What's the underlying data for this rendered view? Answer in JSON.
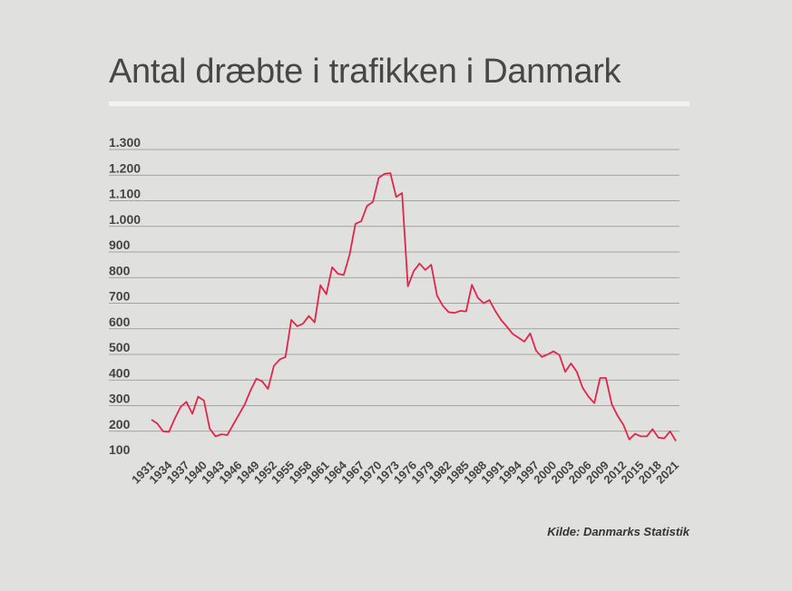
{
  "title": "Antal dræbte i trafikken i Danmark",
  "source": "Kilde: Danmarks Statistik",
  "line_color": "#e0264a",
  "chart_data": {
    "type": "line",
    "title": "Antal dræbte i trafikken i Danmark",
    "xlabel": "",
    "ylabel": "",
    "grid": true,
    "ylim": [
      100,
      1300
    ],
    "y_ticks": [
      "100",
      "200",
      "300",
      "400",
      "500",
      "600",
      "700",
      "800",
      "900",
      "1.000",
      "1.100",
      "1.200",
      "1.300"
    ],
    "y_tick_values": [
      100,
      200,
      300,
      400,
      500,
      600,
      700,
      800,
      900,
      1000,
      1100,
      1200,
      1300
    ],
    "x_ticks": [
      "1931",
      "1934",
      "1937",
      "1940",
      "1943",
      "1946",
      "1949",
      "1952",
      "1955",
      "1958",
      "1961",
      "1964",
      "1967",
      "1970",
      "1973",
      "1976",
      "1979",
      "1982",
      "1985",
      "1988",
      "1991",
      "1994",
      "1997",
      "2000",
      "2003",
      "2006",
      "2009",
      "2012",
      "2015",
      "2018",
      "2021"
    ],
    "x": [
      1931,
      1932,
      1933,
      1934,
      1935,
      1936,
      1937,
      1938,
      1939,
      1940,
      1941,
      1942,
      1943,
      1944,
      1945,
      1946,
      1947,
      1948,
      1949,
      1950,
      1951,
      1952,
      1953,
      1954,
      1955,
      1956,
      1957,
      1958,
      1959,
      1960,
      1961,
      1962,
      1963,
      1964,
      1965,
      1966,
      1967,
      1968,
      1969,
      1970,
      1971,
      1972,
      1973,
      1974,
      1975,
      1976,
      1977,
      1978,
      1979,
      1980,
      1981,
      1982,
      1983,
      1984,
      1985,
      1986,
      1987,
      1988,
      1989,
      1990,
      1991,
      1992,
      1993,
      1994,
      1995,
      1996,
      1997,
      1998,
      1999,
      2000,
      2001,
      2002,
      2003,
      2004,
      2005,
      2006,
      2007,
      2008,
      2009,
      2010,
      2011,
      2012,
      2013,
      2014,
      2015,
      2016,
      2017,
      2018,
      2019,
      2020,
      2021
    ],
    "y": [
      245,
      230,
      200,
      198,
      250,
      295,
      315,
      268,
      335,
      320,
      210,
      180,
      188,
      185,
      225,
      265,
      305,
      360,
      405,
      395,
      365,
      455,
      480,
      490,
      635,
      610,
      620,
      650,
      625,
      770,
      735,
      840,
      815,
      810,
      890,
      1010,
      1020,
      1080,
      1095,
      1190,
      1205,
      1208,
      1115,
      1130,
      766,
      825,
      855,
      830,
      850,
      730,
      690,
      665,
      662,
      670,
      668,
      772,
      722,
      700,
      712,
      670,
      635,
      608,
      580,
      565,
      550,
      582,
      515,
      490,
      500,
      512,
      498,
      432,
      465,
      432,
      370,
      335,
      310,
      408,
      408,
      305,
      260,
      225,
      168,
      190,
      180,
      180,
      208,
      175,
      172,
      200,
      162
    ]
  }
}
